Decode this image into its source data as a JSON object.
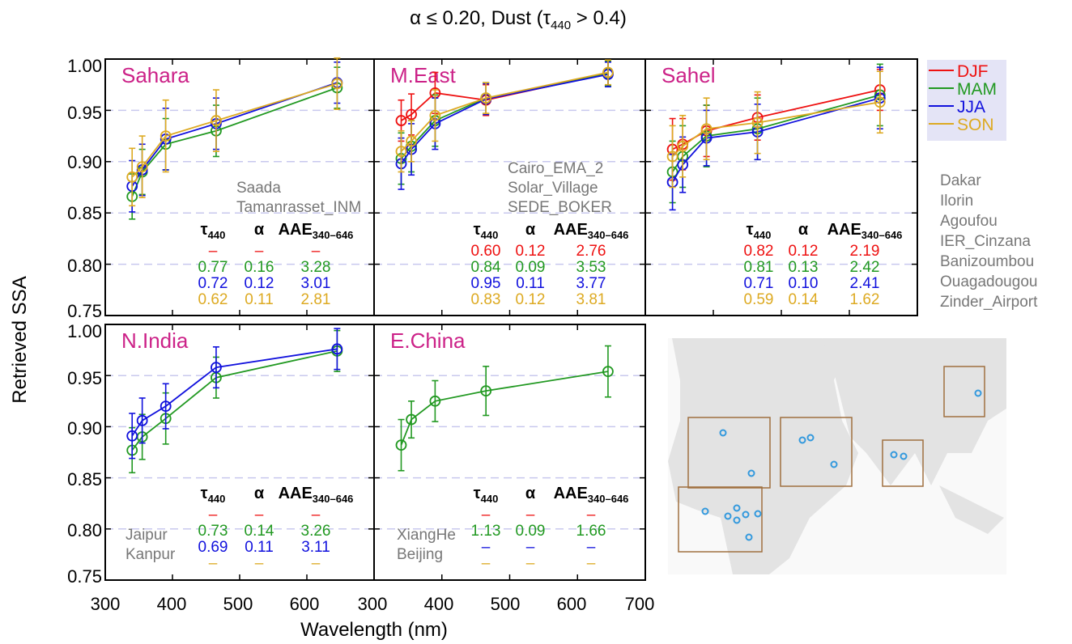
{
  "figure": {
    "title_prefix": "α ≤ 0.20, Dust (τ",
    "title_sub": "440",
    "title_suffix": " > 0.4)",
    "ylabel": "Retrieved SSA",
    "xlabel": "Wavelength (nm)",
    "yticks": [
      "1.00",
      "0.95",
      "0.90",
      "0.85",
      "0.80",
      "0.75"
    ],
    "xticks_left": [
      "300",
      "400",
      "500",
      "600"
    ],
    "xticks_right": [
      "300",
      "400",
      "500",
      "600",
      "700"
    ]
  },
  "legend": {
    "entries": [
      {
        "label": "DJF",
        "color": "#ee1111"
      },
      {
        "label": "MAM",
        "color": "#229922"
      },
      {
        "label": "JJA",
        "color": "#1111dd"
      },
      {
        "label": "SON",
        "color": "#ddaa22"
      }
    ]
  },
  "colors": {
    "DJF": "#ee1111",
    "MAM": "#229922",
    "JJA": "#1111dd",
    "SON": "#ddaa22",
    "region": "#cc2288",
    "site": "#777777",
    "grid": "#c8c8ee",
    "map_land": "#e3e3e3",
    "map_box": "#a07040",
    "map_dot": "#3399dd"
  },
  "table_header": {
    "tau": "τ",
    "tau_sub": "440",
    "alpha": "α",
    "aae": "AAE",
    "aae_sub": "340–646"
  },
  "sahel_sites": [
    "Dakar",
    "Ilorin",
    "Agoufou",
    "IER_Cinzana",
    "Banizoumbou",
    "Ouagadougou",
    "Zinder_Airport"
  ],
  "chart_data": [
    {
      "type": "line",
      "title": "Sahara",
      "xlim": [
        300,
        700
      ],
      "ylim": [
        0.75,
        1.0
      ],
      "x": [
        340,
        355,
        390,
        465,
        645
      ],
      "sites": [
        "Saada",
        "Tamanrasset_INM"
      ],
      "series": [
        {
          "name": "MAM",
          "values": [
            0.866,
            0.89,
            0.917,
            0.93,
            0.972
          ],
          "err": [
            0.022,
            0.022,
            0.025,
            0.025,
            0.02
          ]
        },
        {
          "name": "JJA",
          "values": [
            0.876,
            0.892,
            0.922,
            0.937,
            0.977
          ],
          "err": [
            0.025,
            0.025,
            0.03,
            0.025,
            0.02
          ]
        },
        {
          "name": "SON",
          "values": [
            0.885,
            0.895,
            0.925,
            0.94,
            0.976
          ],
          "err": [
            0.028,
            0.03,
            0.035,
            0.03,
            0.025
          ]
        }
      ],
      "table": [
        {
          "season": "DJF",
          "tau": "–",
          "alpha": "–",
          "aae": "–"
        },
        {
          "season": "MAM",
          "tau": "0.77",
          "alpha": "0.16",
          "aae": "3.28"
        },
        {
          "season": "JJA",
          "tau": "0.72",
          "alpha": "0.12",
          "aae": "3.01"
        },
        {
          "season": "SON",
          "tau": "0.62",
          "alpha": "0.11",
          "aae": "2.81"
        }
      ]
    },
    {
      "type": "line",
      "title": "M.East",
      "xlim": [
        300,
        700
      ],
      "ylim": [
        0.75,
        1.0
      ],
      "x": [
        340,
        355,
        390,
        465,
        645
      ],
      "sites": [
        "Cairo_EMA_2",
        "Solar_Village",
        "SEDE_BOKER"
      ],
      "series": [
        {
          "name": "DJF",
          "values": [
            0.94,
            0.946,
            0.967,
            0.96,
            0.986
          ],
          "err": [
            0.02,
            0.02,
            0.02,
            0.015,
            0.012
          ]
        },
        {
          "name": "MAM",
          "values": [
            0.903,
            0.915,
            0.94,
            0.962,
            0.986
          ],
          "err": [
            0.025,
            0.025,
            0.025,
            0.015,
            0.012
          ]
        },
        {
          "name": "JJA",
          "values": [
            0.898,
            0.912,
            0.937,
            0.961,
            0.985
          ],
          "err": [
            0.025,
            0.025,
            0.025,
            0.015,
            0.012
          ]
        },
        {
          "name": "SON",
          "values": [
            0.91,
            0.92,
            0.945,
            0.962,
            0.987
          ],
          "err": [
            0.02,
            0.02,
            0.025,
            0.015,
            0.012
          ]
        }
      ],
      "table": [
        {
          "season": "DJF",
          "tau": "0.60",
          "alpha": "0.12",
          "aae": "2.76"
        },
        {
          "season": "MAM",
          "tau": "0.84",
          "alpha": "0.09",
          "aae": "3.53"
        },
        {
          "season": "JJA",
          "tau": "0.95",
          "alpha": "0.11",
          "aae": "3.77"
        },
        {
          "season": "SON",
          "tau": "0.83",
          "alpha": "0.12",
          "aae": "3.81"
        }
      ]
    },
    {
      "type": "line",
      "title": "Sahel",
      "xlim": [
        300,
        700
      ],
      "ylim": [
        0.75,
        1.0
      ],
      "x": [
        340,
        355,
        390,
        465,
        645
      ],
      "sites": [],
      "series": [
        {
          "name": "DJF",
          "values": [
            0.912,
            0.917,
            0.93,
            0.943,
            0.97
          ],
          "err": [
            0.03,
            0.025,
            0.025,
            0.022,
            0.02
          ]
        },
        {
          "name": "MAM",
          "values": [
            0.89,
            0.905,
            0.925,
            0.932,
            0.965
          ],
          "err": [
            0.03,
            0.03,
            0.03,
            0.03,
            0.03
          ]
        },
        {
          "name": "JJA",
          "values": [
            0.88,
            0.897,
            0.923,
            0.929,
            0.962
          ],
          "err": [
            0.027,
            0.027,
            0.027,
            0.027,
            0.03
          ]
        },
        {
          "name": "SON",
          "values": [
            0.905,
            0.915,
            0.932,
            0.938,
            0.958
          ],
          "err": [
            0.03,
            0.03,
            0.03,
            0.03,
            0.03
          ]
        }
      ],
      "table": [
        {
          "season": "DJF",
          "tau": "0.82",
          "alpha": "0.12",
          "aae": "2.19"
        },
        {
          "season": "MAM",
          "tau": "0.81",
          "alpha": "0.13",
          "aae": "2.42"
        },
        {
          "season": "JJA",
          "tau": "0.71",
          "alpha": "0.10",
          "aae": "2.41"
        },
        {
          "season": "SON",
          "tau": "0.59",
          "alpha": "0.14",
          "aae": "1.62"
        }
      ]
    },
    {
      "type": "line",
      "title": "N.India",
      "xlim": [
        300,
        700
      ],
      "ylim": [
        0.75,
        1.0
      ],
      "x": [
        340,
        355,
        390,
        465,
        645
      ],
      "sites": [
        "Jaipur",
        "Kanpur"
      ],
      "series": [
        {
          "name": "MAM",
          "values": [
            0.877,
            0.89,
            0.908,
            0.948,
            0.974
          ],
          "err": [
            0.022,
            0.022,
            0.025,
            0.02,
            0.02
          ]
        },
        {
          "name": "JJA",
          "values": [
            0.891,
            0.906,
            0.92,
            0.958,
            0.976
          ],
          "err": [
            0.022,
            0.022,
            0.022,
            0.02,
            0.02
          ]
        }
      ],
      "table": [
        {
          "season": "DJF",
          "tau": "–",
          "alpha": "–",
          "aae": "–"
        },
        {
          "season": "MAM",
          "tau": "0.73",
          "alpha": "0.14",
          "aae": "3.26"
        },
        {
          "season": "JJA",
          "tau": "0.69",
          "alpha": "0.11",
          "aae": "3.11"
        },
        {
          "season": "SON",
          "tau": "–",
          "alpha": "–",
          "aae": "–"
        }
      ]
    },
    {
      "type": "line",
      "title": "E.China",
      "xlim": [
        300,
        700
      ],
      "ylim": [
        0.75,
        1.0
      ],
      "x": [
        340,
        355,
        390,
        465,
        645
      ],
      "sites": [
        "XiangHe",
        "Beijing"
      ],
      "series": [
        {
          "name": "MAM",
          "values": [
            0.882,
            0.907,
            0.925,
            0.935,
            0.954
          ],
          "err": [
            0.025,
            0.018,
            0.02,
            0.024,
            0.025
          ]
        }
      ],
      "table": [
        {
          "season": "DJF",
          "tau": "–",
          "alpha": "–",
          "aae": "–"
        },
        {
          "season": "MAM",
          "tau": "1.13",
          "alpha": "0.09",
          "aae": "1.66"
        },
        {
          "season": "JJA",
          "tau": "–",
          "alpha": "–",
          "aae": "–"
        },
        {
          "season": "SON",
          "tau": "–",
          "alpha": "–",
          "aae": "–"
        }
      ]
    }
  ]
}
